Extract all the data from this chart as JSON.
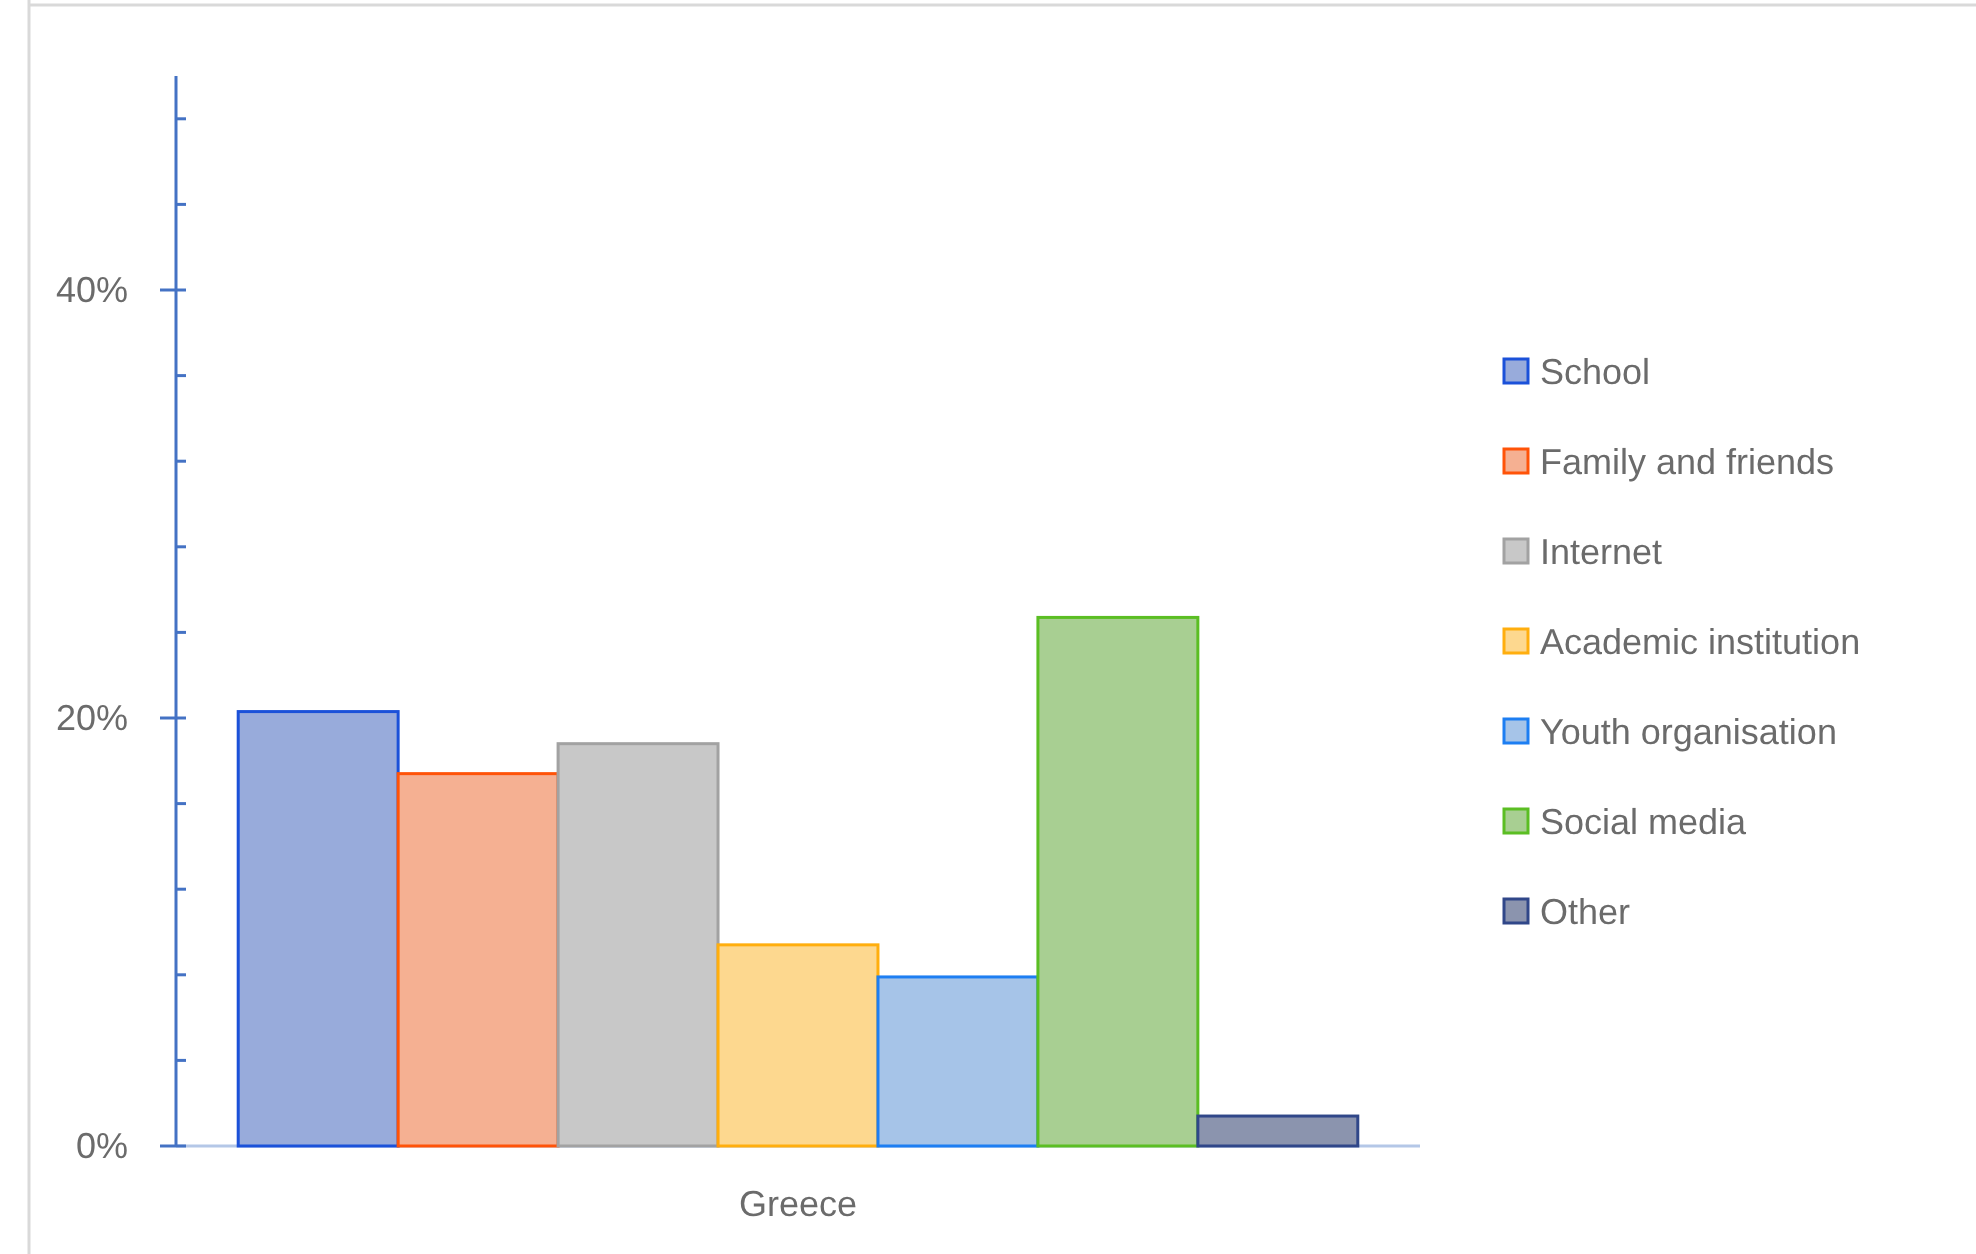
{
  "chart_data": {
    "type": "bar",
    "categories": [
      "Greece"
    ],
    "series": [
      {
        "name": "School",
        "color": "#98abdb",
        "values": [
          20.3
        ]
      },
      {
        "name": "Family and friends",
        "color": "#f5b092",
        "values": [
          17.4
        ]
      },
      {
        "name": "Internet",
        "color": "#c8c8c8",
        "values": [
          18.8
        ]
      },
      {
        "name": "Academic institution",
        "color": "#fdd88f",
        "values": [
          9.4
        ]
      },
      {
        "name": "Youth organisation",
        "color": "#a6c4e8",
        "values": [
          7.9
        ]
      },
      {
        "name": "Social media",
        "color": "#a8cf92",
        "values": [
          24.7
        ]
      },
      {
        "name": "Other",
        "color": "#8b94ae",
        "values": [
          1.4
        ]
      }
    ],
    "ylim": [
      0,
      50
    ],
    "yticks": [
      {
        "value": 0,
        "label": "0%"
      },
      {
        "value": 4,
        "label": null
      },
      {
        "value": 8,
        "label": null
      },
      {
        "value": 12,
        "label": null
      },
      {
        "value": 16,
        "label": null
      },
      {
        "value": 20,
        "label": "20%"
      },
      {
        "value": 24,
        "label": null
      },
      {
        "value": 28,
        "label": null
      },
      {
        "value": 32,
        "label": null
      },
      {
        "value": 36,
        "label": null
      },
      {
        "value": 40,
        "label": "40%"
      },
      {
        "value": 44,
        "label": null
      },
      {
        "value": 48,
        "label": null
      }
    ],
    "legend": "right"
  }
}
